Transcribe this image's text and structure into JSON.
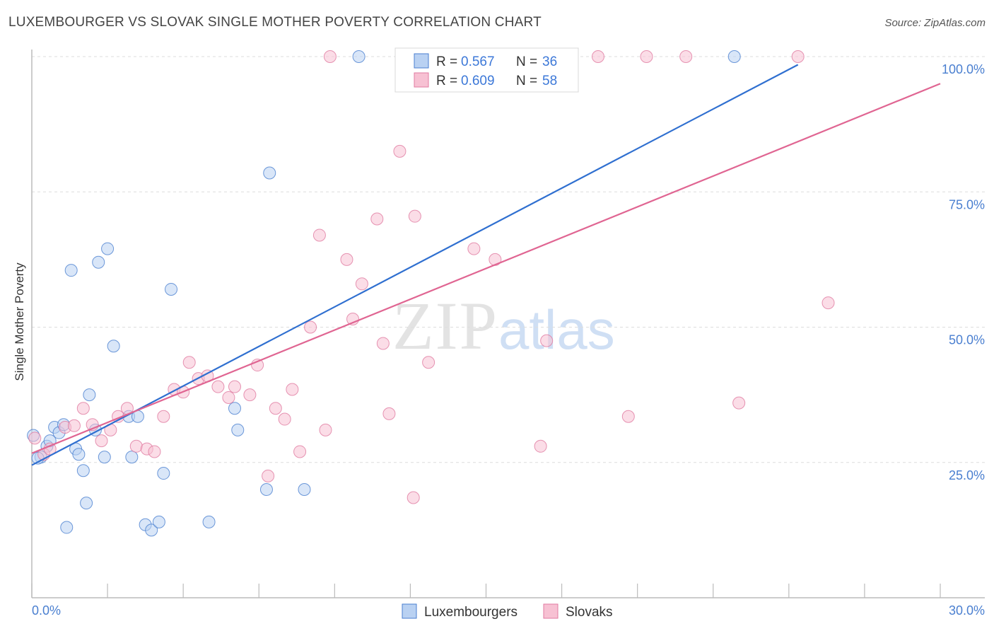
{
  "title": "LUXEMBOURGER VS SLOVAK SINGLE MOTHER POVERTY CORRELATION CHART",
  "source": "Source: ZipAtlas.com",
  "watermark": {
    "zip": "ZIP",
    "atlas": "atlas"
  },
  "chart_data": {
    "type": "scatter",
    "title": "LUXEMBOURGER VS SLOVAK SINGLE MOTHER POVERTY CORRELATION CHART",
    "xlabel": "",
    "ylabel": "Single Mother Poverty",
    "xlim": [
      0,
      30
    ],
    "ylim": [
      0,
      100
    ],
    "x_tick_labels": [
      {
        "value": 0,
        "label": "0.0%"
      },
      {
        "value": 30,
        "label": "30.0%"
      }
    ],
    "y_tick_labels": [
      {
        "value": 25,
        "label": "25.0%"
      },
      {
        "value": 50,
        "label": "50.0%"
      },
      {
        "value": 75,
        "label": "75.0%"
      },
      {
        "value": 100,
        "label": "100.0%"
      }
    ],
    "grid": true,
    "legend_position": "bottom-center",
    "stats_box_position": "top-center",
    "series": [
      {
        "name": "Luxembourgers",
        "color": "#4a7fd0",
        "fill": "#b9d1f2",
        "r_label": "R =",
        "r_value": "0.567",
        "n_label": "N =",
        "n_value": "36",
        "trend": {
          "x": [
            0.0,
            25.3
          ],
          "y": [
            24.5,
            98.5
          ]
        },
        "points": [
          [
            0.05,
            30.0
          ],
          [
            0.3,
            26.0
          ],
          [
            0.5,
            28.0
          ],
          [
            0.6,
            29.0
          ],
          [
            0.75,
            31.5
          ],
          [
            0.9,
            30.5
          ],
          [
            1.05,
            32.0
          ],
          [
            1.15,
            13.0
          ],
          [
            1.3,
            60.5
          ],
          [
            1.45,
            27.5
          ],
          [
            1.55,
            26.5
          ],
          [
            1.7,
            23.5
          ],
          [
            1.8,
            17.5
          ],
          [
            1.9,
            37.5
          ],
          [
            2.1,
            31.0
          ],
          [
            2.2,
            62.0
          ],
          [
            2.4,
            26.0
          ],
          [
            2.5,
            64.5
          ],
          [
            2.7,
            46.5
          ],
          [
            3.2,
            33.5
          ],
          [
            3.3,
            26.0
          ],
          [
            3.5,
            33.5
          ],
          [
            3.75,
            13.5
          ],
          [
            3.95,
            12.5
          ],
          [
            4.2,
            14.0
          ],
          [
            4.35,
            23.0
          ],
          [
            4.6,
            57.0
          ],
          [
            5.85,
            14.0
          ],
          [
            6.7,
            35.0
          ],
          [
            6.8,
            31.0
          ],
          [
            7.75,
            20.0
          ],
          [
            7.85,
            78.5
          ],
          [
            9.0,
            20.0
          ],
          [
            10.8,
            100.0
          ],
          [
            23.2,
            100.0
          ],
          [
            0.2,
            25.8
          ]
        ]
      },
      {
        "name": "Slovaks",
        "color": "#e07aa0",
        "fill": "#f7c1d3",
        "r_label": "R =",
        "r_value": "0.609",
        "n_label": "N =",
        "n_value": "58",
        "trend": {
          "x": [
            0.0,
            30.0
          ],
          "y": [
            26.7,
            95.0
          ]
        },
        "points": [
          [
            0.1,
            29.5
          ],
          [
            0.4,
            26.5
          ],
          [
            0.6,
            27.5
          ],
          [
            1.1,
            31.5
          ],
          [
            1.4,
            31.8
          ],
          [
            1.7,
            35.0
          ],
          [
            2.0,
            32.0
          ],
          [
            2.3,
            29.0
          ],
          [
            2.6,
            31.0
          ],
          [
            2.85,
            33.5
          ],
          [
            3.15,
            35.0
          ],
          [
            3.45,
            28.0
          ],
          [
            3.8,
            27.5
          ],
          [
            4.05,
            27.0
          ],
          [
            4.35,
            33.5
          ],
          [
            4.7,
            38.5
          ],
          [
            5.0,
            38.0
          ],
          [
            5.2,
            43.5
          ],
          [
            5.5,
            40.5
          ],
          [
            5.8,
            41.0
          ],
          [
            6.15,
            39.0
          ],
          [
            6.5,
            37.0
          ],
          [
            6.7,
            39.0
          ],
          [
            7.2,
            37.5
          ],
          [
            7.45,
            43.0
          ],
          [
            7.8,
            22.5
          ],
          [
            8.05,
            35.0
          ],
          [
            8.35,
            33.0
          ],
          [
            8.6,
            38.5
          ],
          [
            8.85,
            27.0
          ],
          [
            9.2,
            50.0
          ],
          [
            9.5,
            67.0
          ],
          [
            9.7,
            31.0
          ],
          [
            9.85,
            100.0
          ],
          [
            10.4,
            62.5
          ],
          [
            10.6,
            51.5
          ],
          [
            10.9,
            58.0
          ],
          [
            11.4,
            70.0
          ],
          [
            11.6,
            47.0
          ],
          [
            11.8,
            34.0
          ],
          [
            12.15,
            82.5
          ],
          [
            12.6,
            18.5
          ],
          [
            12.65,
            70.5
          ],
          [
            13.1,
            43.5
          ],
          [
            14.5,
            100.0
          ],
          [
            14.6,
            64.5
          ],
          [
            15.3,
            62.5
          ],
          [
            16.2,
            100.0
          ],
          [
            16.8,
            28.0
          ],
          [
            17.0,
            47.5
          ],
          [
            17.5,
            100.0
          ],
          [
            18.7,
            100.0
          ],
          [
            19.7,
            33.5
          ],
          [
            20.3,
            100.0
          ],
          [
            21.6,
            100.0
          ],
          [
            23.35,
            36.0
          ],
          [
            25.3,
            100.0
          ],
          [
            26.3,
            54.5
          ]
        ]
      }
    ]
  }
}
